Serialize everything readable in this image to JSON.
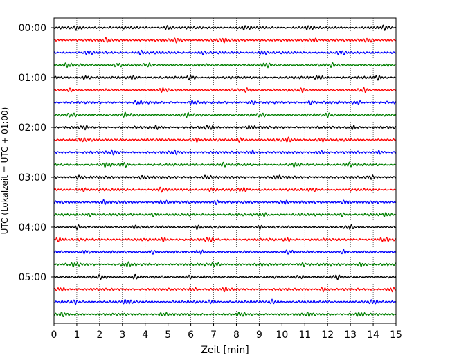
{
  "chart_data": {
    "type": "line",
    "title": "",
    "xlabel": "Zeit  [min]",
    "ylabel": "UTC (Lokalzeit = UTC + 01:00)",
    "xlim": [
      0,
      15
    ],
    "x_ticks": [
      0,
      1,
      2,
      3,
      4,
      5,
      6,
      7,
      8,
      9,
      10,
      11,
      12,
      13,
      14,
      15
    ],
    "y_tick_labels": [
      "00:00",
      "01:00",
      "02:00",
      "03:00",
      "04:00",
      "05:00"
    ],
    "grid": "vertical dotted",
    "legend": "none",
    "trace_interval_minutes": 15,
    "trace_count": 24,
    "color_cycle": [
      "#000000",
      "#ff0000",
      "#0000ff",
      "#008000"
    ],
    "series": [
      {
        "start": "00:00",
        "color": "#000000",
        "bursts": [
          1.0,
          5.0,
          8.4,
          11.2,
          14.5
        ]
      },
      {
        "start": "00:15",
        "color": "#ff0000",
        "bursts": [
          2.3,
          5.4,
          7.4,
          11.4,
          13.8
        ]
      },
      {
        "start": "00:30",
        "color": "#0000ff",
        "bursts": [
          1.5,
          3.8,
          6.5,
          9.2,
          12.6
        ]
      },
      {
        "start": "00:45",
        "color": "#008000",
        "bursts": [
          0.6,
          2.8,
          4.1,
          9.3,
          12.2
        ]
      },
      {
        "start": "01:00",
        "color": "#000000",
        "bursts": [
          1.4,
          3.5,
          6.0,
          11.6,
          14.2
        ]
      },
      {
        "start": "01:15",
        "color": "#ff0000",
        "bursts": [
          0.7,
          4.8,
          8.5,
          10.9,
          13.6
        ]
      },
      {
        "start": "01:30",
        "color": "#0000ff",
        "bursts": [
          3.7,
          6.1,
          8.7,
          11.3,
          13.3
        ]
      },
      {
        "start": "01:45",
        "color": "#008000",
        "bursts": [
          0.8,
          3.1,
          5.8,
          9.1,
          12.0
        ]
      },
      {
        "start": "02:00",
        "color": "#000000",
        "bursts": [
          1.3,
          4.5,
          6.8,
          8.6,
          13.1
        ]
      },
      {
        "start": "02:15",
        "color": "#ff0000",
        "bursts": [
          1.2,
          6.2,
          8.2,
          10.3,
          11.7
        ]
      },
      {
        "start": "02:30",
        "color": "#0000ff",
        "bursts": [
          2.6,
          5.3,
          8.7,
          11.7,
          14.3
        ]
      },
      {
        "start": "02:45",
        "color": "#008000",
        "bursts": [
          2.3,
          3.1,
          7.4,
          10.6,
          12.9
        ]
      },
      {
        "start": "03:00",
        "color": "#000000",
        "bursts": [
          1.1,
          3.9,
          6.7,
          9.8,
          13.9
        ]
      },
      {
        "start": "03:15",
        "color": "#ff0000",
        "bursts": [
          1.3,
          4.7,
          6.9,
          8.3,
          11.4
        ]
      },
      {
        "start": "03:30",
        "color": "#0000ff",
        "bursts": [
          2.2,
          4.8,
          7.1,
          10.1,
          12.8
        ]
      },
      {
        "start": "03:45",
        "color": "#008000",
        "bursts": [
          1.6,
          4.4,
          9.2,
          12.6,
          14.6
        ]
      },
      {
        "start": "04:00",
        "color": "#000000",
        "bursts": [
          1.0,
          3.6,
          6.3,
          9.0,
          13.0
        ]
      },
      {
        "start": "04:15",
        "color": "#ff0000",
        "bursts": [
          0.2,
          4.8,
          6.8,
          10.2,
          14.5
        ]
      },
      {
        "start": "04:30",
        "color": "#0000ff",
        "bursts": [
          1.4,
          4.3,
          6.4,
          10.3,
          12.7
        ]
      },
      {
        "start": "04:45",
        "color": "#008000",
        "bursts": [
          0.9,
          3.2,
          7.1,
          10.9,
          13.5
        ]
      },
      {
        "start": "05:00",
        "color": "#000000",
        "bursts": [
          2.1,
          3.6,
          5.9,
          10.8,
          12.4
        ]
      },
      {
        "start": "05:15",
        "color": "#ff0000",
        "bursts": [
          0.3,
          6.1,
          7.5,
          11.8,
          14.8
        ]
      },
      {
        "start": "05:30",
        "color": "#0000ff",
        "bursts": [
          0.9,
          3.2,
          6.9,
          9.6,
          14.0
        ]
      },
      {
        "start": "05:45",
        "color": "#008000",
        "bursts": [
          0.4,
          4.8,
          8.2,
          11.2,
          13.4
        ]
      }
    ]
  }
}
